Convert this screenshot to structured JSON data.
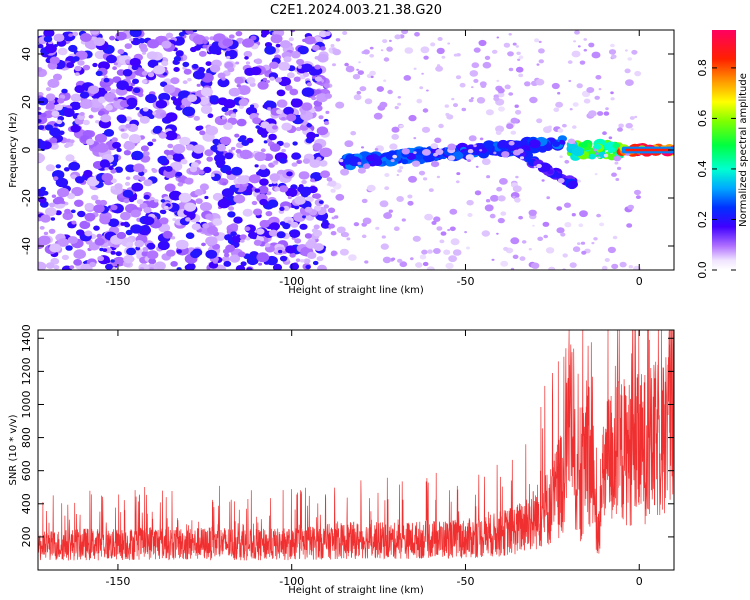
{
  "title": "C2E1.2024.003.21.38.G20",
  "chart_data": [
    {
      "type": "heatmap",
      "xlabel": "Height of straight line (km)",
      "ylabel": "Frequency (Hz)",
      "xlim": [
        -173,
        10
      ],
      "ylim": [
        -50,
        50
      ],
      "x_ticks": [
        -150,
        -100,
        -50,
        0
      ],
      "y_ticks": [
        -40,
        -20,
        0,
        20,
        40
      ],
      "colorbar": {
        "label": "Normalized spectral amplitude",
        "range": [
          0.0,
          0.95
        ],
        "ticks": [
          0.0,
          0.2,
          0.4,
          0.6,
          0.8
        ]
      },
      "features": [
        {
          "from_x": -173,
          "to_x": -90,
          "freq_min": -50,
          "freq_max": 50,
          "amplitude": 0.1
        },
        {
          "from_x": -85,
          "to_x": -22,
          "freq_min": -5,
          "freq_max": 8,
          "amplitude": 0.25
        },
        {
          "from_x": -35,
          "to_x": -19,
          "freq_min": -13,
          "freq_max": 0,
          "amplitude": 0.2
        },
        {
          "from_x": -20,
          "to_x": -5,
          "freq_min": -3,
          "freq_max": 3,
          "amplitude": 0.5
        },
        {
          "from_x": -5,
          "to_x": 10,
          "freq_min": -1,
          "freq_max": 1,
          "amplitude": 0.85
        }
      ],
      "grid": false
    },
    {
      "type": "line",
      "xlabel": "Height of straight line (km)",
      "ylabel": "SNR (10 * v/v)",
      "xlim": [
        -173,
        10
      ],
      "ylim": [
        0,
        1450
      ],
      "x_ticks": [
        -150,
        -100,
        -50,
        0
      ],
      "y_ticks": [
        200,
        400,
        600,
        800,
        1000,
        1200,
        1400
      ],
      "series": [
        {
          "color": "#f03030",
          "x": [
            -173,
            -160,
            -150,
            -140,
            -130,
            -120,
            -110,
            -100,
            -90,
            -80,
            -70,
            -60,
            -50,
            -45,
            -40,
            -35,
            -30,
            -25,
            -22,
            -20,
            -19,
            -17,
            -15,
            -13,
            -12,
            -11,
            -10,
            -8,
            -5,
            -2,
            0,
            3,
            5,
            7,
            8,
            9,
            10
          ],
          "values": [
            150,
            165,
            160,
            175,
            165,
            170,
            160,
            165,
            180,
            190,
            185,
            195,
            200,
            210,
            230,
            260,
            330,
            420,
            600,
            1050,
            750,
            380,
            900,
            450,
            170,
            420,
            650,
            720,
            760,
            740,
            770,
            790,
            820,
            860,
            920,
            1050,
            1200
          ]
        }
      ],
      "grid": false
    }
  ]
}
